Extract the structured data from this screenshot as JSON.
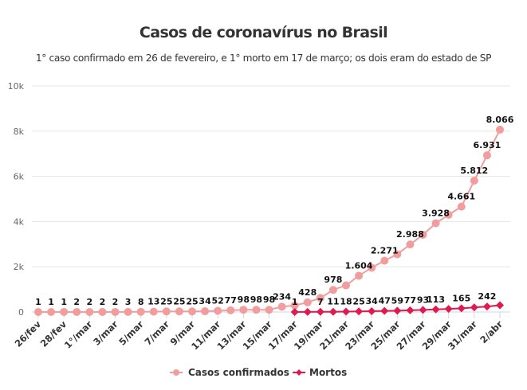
{
  "chart_data": {
    "type": "line",
    "title": "Casos de coronavírus no Brasil",
    "subtitle": "1° caso confirmado em 26 de fevereiro, e 1° morto em 17 de março; os dois eram do estado de SP",
    "xlabel": "",
    "ylabel": "",
    "ylim": [
      0,
      10000
    ],
    "yticks": [
      0,
      2000,
      4000,
      6000,
      8000,
      10000
    ],
    "ytick_labels": [
      "0",
      "2k",
      "4k",
      "6k",
      "8k",
      "10k"
    ],
    "grid": true,
    "legend_position": "bottom-center",
    "categories": [
      "26/fev",
      "27/fev",
      "28/fev",
      "29/fev",
      "1°/mar",
      "2/mar",
      "3/mar",
      "4/mar",
      "5/mar",
      "6/mar",
      "7/mar",
      "8/mar",
      "9/mar",
      "10/mar",
      "11/mar",
      "12/mar",
      "13/mar",
      "14/mar",
      "15/mar",
      "16/mar",
      "17/mar",
      "18/mar",
      "19/mar",
      "20/mar",
      "21/mar",
      "22/mar",
      "23/mar",
      "24/mar",
      "25/mar",
      "26/mar",
      "27/mar",
      "28/mar",
      "29/mar",
      "30/mar",
      "31/mar",
      "1/abr",
      "2/abr"
    ],
    "xtick_labels": [
      "26/fev",
      "28/fev",
      "1°/mar",
      "3/mar",
      "5/mar",
      "7/mar",
      "9/mar",
      "11/mar",
      "13/mar",
      "15/mar",
      "17/mar",
      "19/mar",
      "21/mar",
      "23/mar",
      "25/mar",
      "27/mar",
      "29/mar",
      "31/mar",
      "2/abr"
    ],
    "series": [
      {
        "name": "Casos confirmados",
        "color": "#f29d9d",
        "marker": "circle",
        "values": [
          1,
          1,
          1,
          2,
          2,
          2,
          2,
          3,
          8,
          13,
          25,
          25,
          25,
          34,
          52,
          77,
          98,
          98,
          98,
          234,
          291,
          428,
          621,
          978,
          1178,
          1604,
          1960,
          2271,
          2555,
          2988,
          3417,
          3928,
          4300,
          4661,
          5812,
          6931,
          8066
        ],
        "labels": [
          "1",
          "1",
          "1",
          "2",
          "2",
          "2",
          "2",
          "3",
          "8",
          "13",
          "25",
          "25",
          "25",
          "34",
          "52",
          "77",
          "98",
          "98",
          "98",
          "234",
          "",
          "428",
          "",
          "978",
          "",
          "1.604",
          "",
          "2.271",
          "",
          "2.988",
          "",
          "3.928",
          "",
          "4.661",
          "5.812",
          "6.931",
          "8.066"
        ]
      },
      {
        "name": "Mortos",
        "color": "#e0194e",
        "marker": "diamond",
        "values": [
          null,
          null,
          null,
          null,
          null,
          null,
          null,
          null,
          null,
          null,
          null,
          null,
          null,
          null,
          null,
          null,
          null,
          null,
          null,
          null,
          1,
          3,
          7,
          11,
          18,
          25,
          34,
          47,
          59,
          77,
          93,
          113,
          136,
          165,
          201,
          242,
          299
        ],
        "labels": [
          "",
          "",
          "",
          "",
          "",
          "",
          "",
          "",
          "",
          "",
          "",
          "",
          "",
          "",
          "",
          "",
          "",
          "",
          "",
          "",
          "1",
          "",
          "7",
          "11",
          "18",
          "25",
          "34",
          "47",
          "59",
          "77",
          "93",
          "113",
          "",
          "165",
          "",
          "242",
          ""
        ]
      }
    ]
  }
}
